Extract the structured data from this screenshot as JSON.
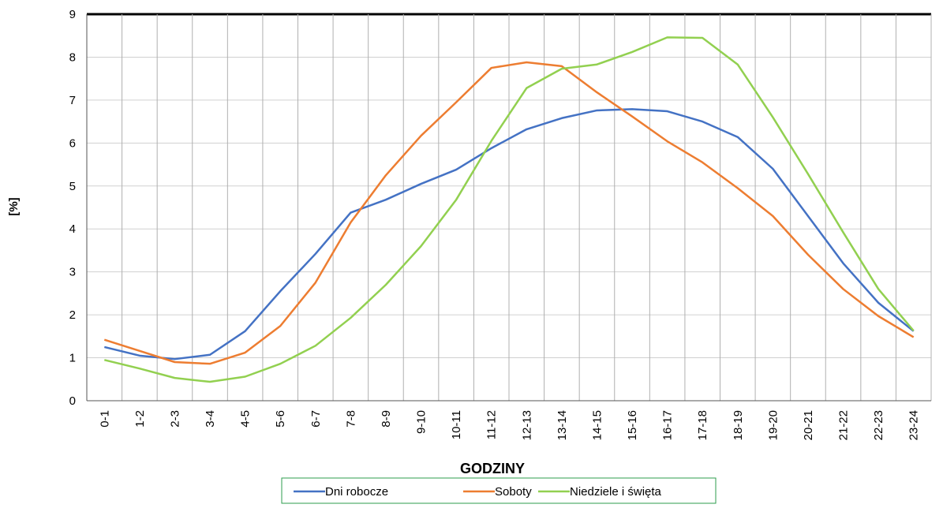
{
  "chart_data": {
    "type": "line",
    "y_label": "[%]",
    "x_label": "GODZINY",
    "categories": [
      "0-1",
      "1-2",
      "2-3",
      "3-4",
      "4-5",
      "5-6",
      "6-7",
      "7-8",
      "8-9",
      "9-10",
      "10-11",
      "11-12",
      "12-13",
      "13-14",
      "14-15",
      "15-16",
      "16-17",
      "17-18",
      "18-19",
      "19-20",
      "20-21",
      "21-22",
      "22-23",
      "23-24"
    ],
    "series": [
      {
        "name": "Dni robocze",
        "color": "#4472c4",
        "values": [
          1.25,
          1.05,
          0.97,
          1.07,
          1.62,
          2.55,
          3.42,
          4.38,
          4.68,
          5.05,
          5.38,
          5.88,
          6.32,
          6.58,
          6.76,
          6.79,
          6.74,
          6.5,
          6.14,
          5.4,
          4.3,
          3.2,
          2.28,
          1.62
        ]
      },
      {
        "name": "Soboty",
        "color": "#ed7d31",
        "values": [
          1.42,
          1.16,
          0.9,
          0.86,
          1.12,
          1.74,
          2.75,
          4.15,
          5.25,
          6.17,
          6.95,
          7.75,
          7.88,
          7.79,
          7.18,
          6.62,
          6.04,
          5.55,
          4.95,
          4.3,
          3.4,
          2.6,
          1.97,
          1.48
        ]
      },
      {
        "name": "Niedziele i święta",
        "color": "#92d050",
        "values": [
          0.95,
          0.75,
          0.53,
          0.44,
          0.56,
          0.86,
          1.28,
          1.93,
          2.7,
          3.6,
          4.68,
          6.05,
          7.28,
          7.73,
          7.83,
          8.12,
          8.46,
          8.45,
          7.83,
          6.6,
          5.28,
          3.92,
          2.6,
          1.63
        ]
      }
    ],
    "ylim": [
      0,
      9
    ],
    "yticks": [
      0,
      1,
      2,
      3,
      4,
      5,
      6,
      7,
      8,
      9
    ],
    "grid": true,
    "legend": "bottom"
  }
}
